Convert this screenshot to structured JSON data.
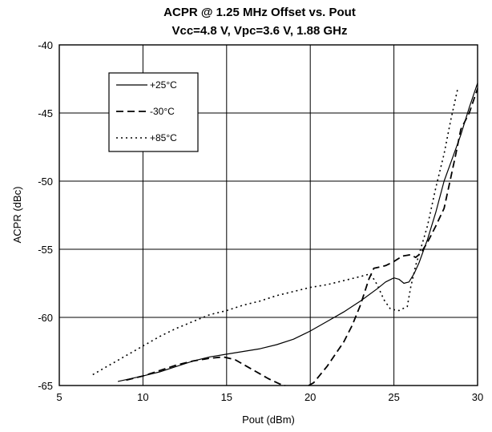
{
  "chart_data": {
    "type": "line",
    "title": "ACPR @ 1.25 MHz Offset vs. Pout",
    "subtitle": "Vcc=4.8 V, Vpc=3.6 V, 1.88 GHz",
    "xlabel": "Pout (dBm)",
    "ylabel": "ACPR (dBc)",
    "xlim": [
      5,
      30
    ],
    "ylim": [
      -65,
      -40
    ],
    "x_ticks": [
      5,
      10,
      15,
      20,
      25,
      30
    ],
    "y_ticks": [
      -40,
      -45,
      -50,
      -55,
      -60,
      -65
    ],
    "grid": true,
    "legend_position": "top-left",
    "series": [
      {
        "name": "+25°C",
        "style": "solid",
        "color": "#000000",
        "points": [
          [
            8.5,
            -64.7
          ],
          [
            10,
            -64.3
          ],
          [
            11,
            -64.0
          ],
          [
            12,
            -63.6
          ],
          [
            13,
            -63.2
          ],
          [
            14,
            -62.9
          ],
          [
            15,
            -62.7
          ],
          [
            16,
            -62.5
          ],
          [
            17,
            -62.3
          ],
          [
            18,
            -62.0
          ],
          [
            19,
            -61.6
          ],
          [
            20,
            -61.0
          ],
          [
            21,
            -60.3
          ],
          [
            22,
            -59.6
          ],
          [
            23,
            -58.8
          ],
          [
            24,
            -57.9
          ],
          [
            24.5,
            -57.4
          ],
          [
            25,
            -57.1
          ],
          [
            25.3,
            -57.2
          ],
          [
            25.6,
            -57.5
          ],
          [
            25.9,
            -57.4
          ],
          [
            26.2,
            -56.8
          ],
          [
            26.5,
            -56.0
          ],
          [
            27,
            -54.3
          ],
          [
            27.5,
            -52.3
          ],
          [
            28,
            -50.0
          ],
          [
            28.5,
            -48.3
          ],
          [
            29,
            -46.6
          ],
          [
            29.5,
            -44.6
          ],
          [
            30,
            -42.8
          ]
        ]
      },
      {
        "name": "-30°C",
        "style": "dashed",
        "color": "#000000",
        "points": [
          [
            9,
            -64.6
          ],
          [
            10,
            -64.3
          ],
          [
            11,
            -63.9
          ],
          [
            12,
            -63.5
          ],
          [
            13,
            -63.2
          ],
          [
            14,
            -63.0
          ],
          [
            14.8,
            -62.9
          ],
          [
            15.5,
            -63.1
          ],
          [
            16.5,
            -63.8
          ],
          [
            17.5,
            -64.5
          ],
          [
            18.2,
            -64.9
          ],
          [
            18.5,
            -65.0
          ]
        ]
      },
      {
        "name": "-30°C",
        "style": "dashed",
        "color": "#000000",
        "points": [
          [
            19.9,
            -65.0
          ],
          [
            20.2,
            -64.8
          ],
          [
            21,
            -63.6
          ],
          [
            22,
            -61.8
          ],
          [
            22.5,
            -60.6
          ],
          [
            23,
            -59.1
          ],
          [
            23.5,
            -57.2
          ],
          [
            23.8,
            -56.4
          ],
          [
            24.5,
            -56.2
          ],
          [
            25,
            -55.9
          ],
          [
            25.5,
            -55.5
          ],
          [
            26,
            -55.4
          ],
          [
            26.3,
            -55.6
          ],
          [
            26.6,
            -55.3
          ],
          [
            27,
            -54.5
          ],
          [
            27.5,
            -53.3
          ],
          [
            28,
            -52.0
          ],
          [
            28.3,
            -50.3
          ],
          [
            28.7,
            -48.0
          ],
          [
            29,
            -46.2
          ],
          [
            29.5,
            -45.0
          ],
          [
            30,
            -43.2
          ]
        ]
      },
      {
        "name": "+85°C",
        "style": "dotted",
        "color": "#000000",
        "points": [
          [
            7,
            -64.2
          ],
          [
            8,
            -63.5
          ],
          [
            9,
            -62.8
          ],
          [
            10,
            -62.1
          ],
          [
            11,
            -61.4
          ],
          [
            12,
            -60.8
          ],
          [
            13,
            -60.3
          ],
          [
            14,
            -59.8
          ],
          [
            15,
            -59.5
          ],
          [
            16,
            -59.1
          ],
          [
            17,
            -58.8
          ],
          [
            18,
            -58.4
          ],
          [
            19,
            -58.1
          ],
          [
            20,
            -57.8
          ],
          [
            21,
            -57.6
          ],
          [
            22,
            -57.3
          ],
          [
            23,
            -57.0
          ],
          [
            23.6,
            -56.8
          ],
          [
            24.0,
            -57.6
          ],
          [
            24.4,
            -58.7
          ],
          [
            24.8,
            -59.4
          ],
          [
            25.3,
            -59.5
          ],
          [
            25.8,
            -59.2
          ],
          [
            26.0,
            -57.8
          ],
          [
            26.3,
            -56.2
          ],
          [
            26.5,
            -55.4
          ],
          [
            27,
            -53.3
          ],
          [
            27.5,
            -50.5
          ],
          [
            28,
            -48.0
          ],
          [
            28.4,
            -45.5
          ],
          [
            28.8,
            -43.3
          ]
        ]
      }
    ]
  }
}
